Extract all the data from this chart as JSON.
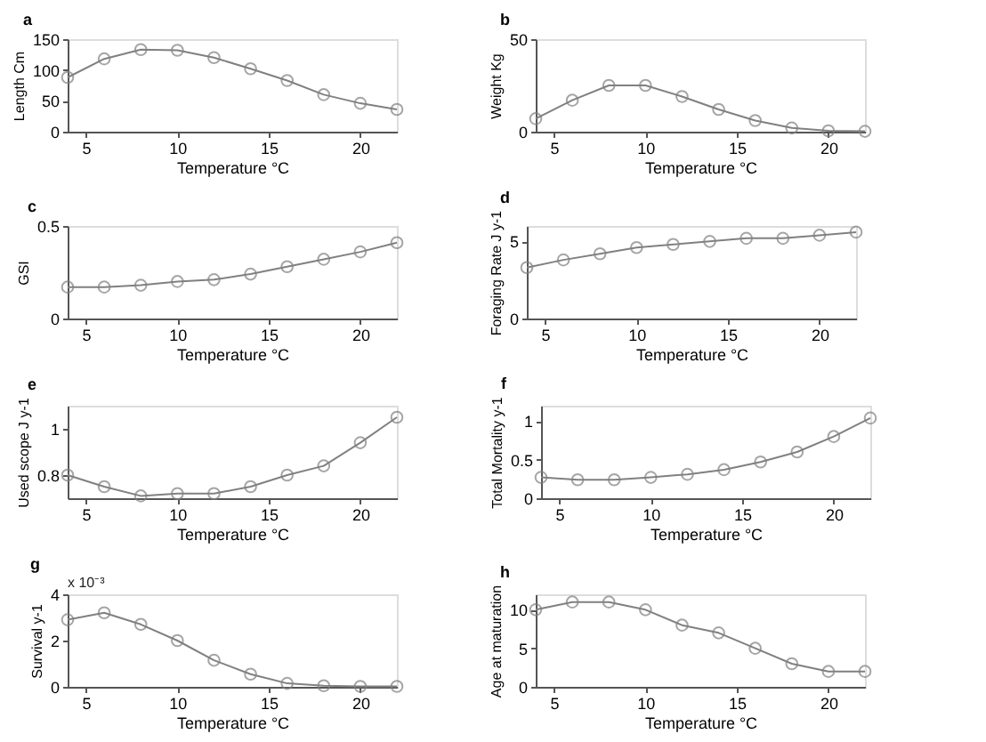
{
  "chart_data": [
    {
      "type": "line",
      "title": "a",
      "xlabel": "Temperature °C",
      "ylabel": "Length Cm",
      "x": [
        4,
        6,
        8,
        10,
        12,
        14,
        16,
        18,
        20,
        22
      ],
      "xlim": [
        4,
        22
      ],
      "xticks": [
        5,
        10,
        15,
        20
      ],
      "ylim": [
        0,
        150
      ],
      "yticks": [
        0,
        50,
        100,
        150
      ],
      "marker": "circle",
      "grid": false,
      "series": [
        {
          "color": "#808080",
          "values": [
            88,
            118,
            133,
            132,
            120,
            102,
            83,
            60,
            46,
            36
          ]
        }
      ]
    },
    {
      "type": "line",
      "title": "b",
      "xlabel": "Temperature °C",
      "ylabel": "Weight Kg",
      "x": [
        4,
        6,
        8,
        10,
        12,
        14,
        16,
        18,
        20,
        22
      ],
      "xlim": [
        4,
        22
      ],
      "xticks": [
        5,
        10,
        15,
        20
      ],
      "ylim": [
        0,
        50
      ],
      "yticks": [
        0,
        50
      ],
      "marker": "circle",
      "grid": false,
      "series": [
        {
          "color": "#808080",
          "values": [
            7,
            17,
            25,
            25,
            19,
            12,
            6,
            2,
            0.5,
            0.2
          ]
        }
      ]
    },
    {
      "type": "line",
      "title": "c",
      "xlabel": "Temperature °C",
      "ylabel": "GSI",
      "x": [
        4,
        6,
        8,
        10,
        12,
        14,
        16,
        18,
        20,
        22
      ],
      "xlim": [
        4,
        22
      ],
      "xticks": [
        5,
        10,
        15,
        20
      ],
      "ylim": [
        0,
        0.5
      ],
      "yticks": [
        0,
        0.5
      ],
      "marker": "circle",
      "grid": false,
      "series": [
        {
          "color": "#808080",
          "values": [
            0.17,
            0.17,
            0.18,
            0.2,
            0.21,
            0.24,
            0.28,
            0.32,
            0.36,
            0.41
          ]
        }
      ]
    },
    {
      "type": "line",
      "title": "d",
      "xlabel": "Temperature °C",
      "ylabel": "Foraging Rate J y-1",
      "x": [
        4,
        6,
        8,
        10,
        12,
        14,
        16,
        18,
        20,
        22
      ],
      "xlim": [
        4,
        22
      ],
      "xticks": [
        5,
        10,
        15,
        20
      ],
      "ylim": [
        0,
        6
      ],
      "yticks": [
        0,
        5
      ],
      "marker": "circle",
      "grid": false,
      "series": [
        {
          "color": "#808080",
          "values": [
            3.3,
            3.8,
            4.2,
            4.6,
            4.8,
            5.0,
            5.2,
            5.2,
            5.4,
            5.6
          ]
        }
      ]
    },
    {
      "type": "line",
      "title": "e",
      "xlabel": "Temperature °C",
      "ylabel": "Used scope J y-1",
      "x": [
        4,
        6,
        8,
        10,
        12,
        14,
        16,
        18,
        20,
        22
      ],
      "xlim": [
        4,
        22
      ],
      "xticks": [
        5,
        10,
        15,
        20
      ],
      "ylim": [
        0.7,
        1.1
      ],
      "yticks": [
        0.8,
        1
      ],
      "marker": "circle",
      "grid": false,
      "series": [
        {
          "color": "#808080",
          "values": [
            0.8,
            0.75,
            0.71,
            0.72,
            0.72,
            0.75,
            0.8,
            0.84,
            0.94,
            1.05
          ]
        }
      ]
    },
    {
      "type": "line",
      "title": "f",
      "xlabel": "Temperature °C",
      "ylabel": "Total Mortality y-1",
      "x": [
        4,
        6,
        8,
        10,
        12,
        14,
        16,
        18,
        20,
        22
      ],
      "xlim": [
        4,
        22
      ],
      "xticks": [
        5,
        10,
        15,
        20
      ],
      "ylim": [
        0,
        1.2
      ],
      "yticks": [
        0,
        0.5,
        1
      ],
      "marker": "circle",
      "grid": false,
      "series": [
        {
          "color": "#808080",
          "values": [
            0.27,
            0.24,
            0.24,
            0.27,
            0.31,
            0.37,
            0.47,
            0.6,
            0.8,
            1.04
          ]
        }
      ]
    },
    {
      "type": "line",
      "title": "g",
      "xlabel": "Temperature °C",
      "ylabel": "Survival y-1",
      "annotations": [
        "x 10⁻³"
      ],
      "x": [
        4,
        6,
        8,
        10,
        12,
        14,
        16,
        18,
        20,
        22
      ],
      "xlim": [
        4,
        22
      ],
      "xticks": [
        5,
        10,
        15,
        20
      ],
      "ylim": [
        0,
        4
      ],
      "yticks": [
        0,
        2,
        4
      ],
      "marker": "circle",
      "grid": false,
      "series": [
        {
          "color": "#808080",
          "values": [
            2.9,
            3.2,
            2.7,
            2.0,
            1.15,
            0.55,
            0.15,
            0.05,
            0.02,
            0.02
          ]
        }
      ]
    },
    {
      "type": "line",
      "title": "h",
      "xlabel": "Temperature °C",
      "ylabel": "Age at maturation",
      "x": [
        4,
        6,
        8,
        10,
        12,
        14,
        16,
        18,
        20,
        22
      ],
      "xlim": [
        4,
        22
      ],
      "xticks": [
        5,
        10,
        15,
        20
      ],
      "ylim": [
        0,
        12
      ],
      "yticks": [
        0,
        5,
        10
      ],
      "marker": "circle",
      "grid": false,
      "series": [
        {
          "color": "#808080",
          "values": [
            10,
            11,
            11,
            10,
            8,
            7,
            5,
            3,
            2,
            2
          ]
        }
      ]
    }
  ]
}
